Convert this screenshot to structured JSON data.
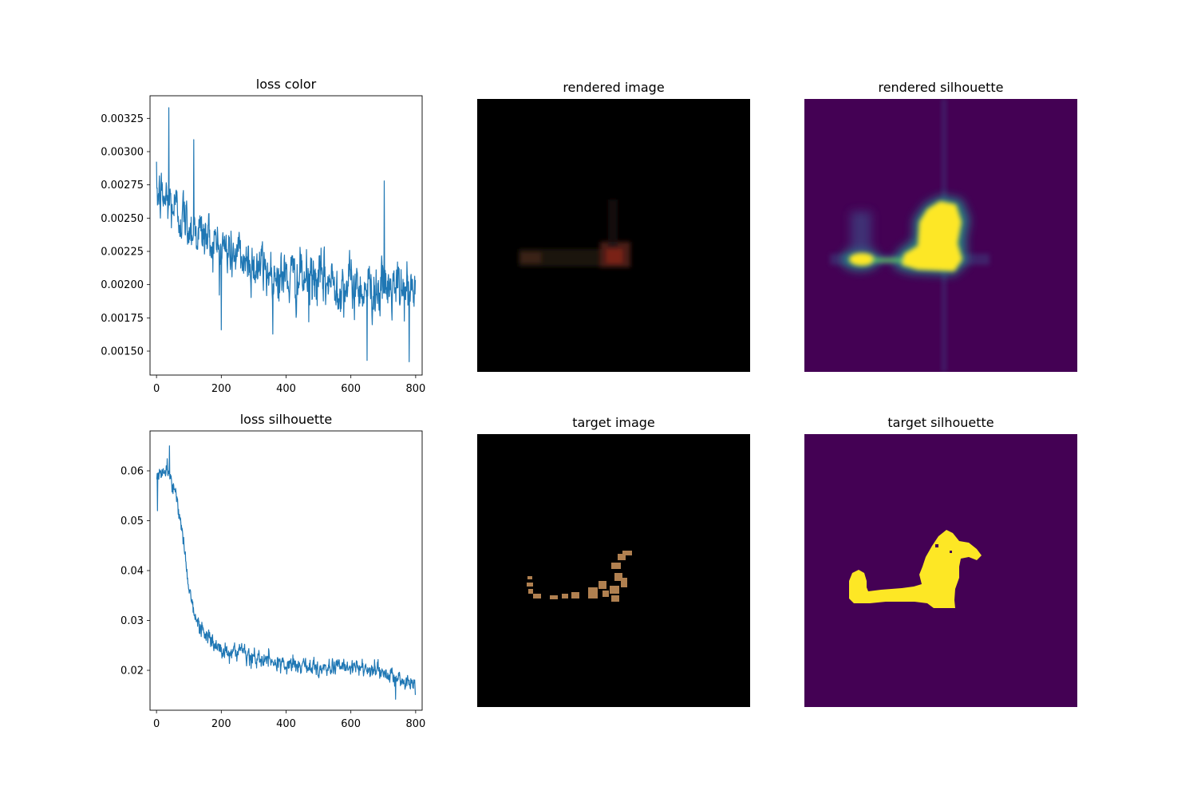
{
  "chart_data": [
    {
      "type": "line",
      "title": "loss color",
      "xlabel": "",
      "ylabel": "",
      "xlim": [
        -20,
        820
      ],
      "ylim": [
        0.00132,
        0.00342
      ],
      "x_ticks": [
        0,
        200,
        400,
        600,
        800
      ],
      "x_tick_labels": [
        "0",
        "200",
        "400",
        "600",
        "800"
      ],
      "y_ticks": [
        0.0015,
        0.00175,
        0.002,
        0.00225,
        0.0025,
        0.00275,
        0.003,
        0.00325
      ],
      "y_tick_labels": [
        "0.00150",
        "0.00175",
        "0.00200",
        "0.00225",
        "0.00250",
        "0.00275",
        "0.00300",
        "0.00325"
      ],
      "grid": false,
      "color": "#1f77b4",
      "series": [
        {
          "x_range": [
            0,
            799
          ],
          "points": 800,
          "trend": [
            [
              0,
              0.00268
            ],
            [
              40,
              0.00262
            ],
            [
              100,
              0.00245
            ],
            [
              200,
              0.00228
            ],
            [
              300,
              0.00215
            ],
            [
              400,
              0.00205
            ],
            [
              500,
              0.00203
            ],
            [
              600,
              0.00199
            ],
            [
              700,
              0.00197
            ],
            [
              799,
              0.00194
            ]
          ],
          "noise_std": 0.00016,
          "extremes": [
            [
              38,
              0.00333
            ],
            [
              115,
              0.00309
            ],
            [
              200,
              0.00166
            ],
            [
              470,
              0.00172
            ],
            [
              650,
              0.00143
            ],
            [
              703,
              0.00278
            ],
            [
              780,
              0.00142
            ]
          ]
        }
      ]
    },
    {
      "type": "line",
      "title": "loss silhouette",
      "xlabel": "",
      "ylabel": "",
      "xlim": [
        -20,
        820
      ],
      "ylim": [
        0.012,
        0.068
      ],
      "x_ticks": [
        0,
        200,
        400,
        600,
        800
      ],
      "x_tick_labels": [
        "0",
        "200",
        "400",
        "600",
        "800"
      ],
      "y_ticks": [
        0.02,
        0.03,
        0.04,
        0.05,
        0.06
      ],
      "y_tick_labels": [
        "0.02",
        "0.03",
        "0.04",
        "0.05",
        "0.06"
      ],
      "grid": false,
      "color": "#1f77b4",
      "series": [
        {
          "x_range": [
            0,
            799
          ],
          "points": 800,
          "trend": [
            [
              0,
              0.0595
            ],
            [
              40,
              0.0595
            ],
            [
              60,
              0.0555
            ],
            [
              80,
              0.047
            ],
            [
              100,
              0.037
            ],
            [
              120,
              0.03
            ],
            [
              160,
              0.0265
            ],
            [
              200,
              0.024
            ],
            [
              300,
              0.0225
            ],
            [
              400,
              0.021
            ],
            [
              500,
              0.0205
            ],
            [
              600,
              0.0205
            ],
            [
              700,
              0.0195
            ],
            [
              799,
              0.017
            ]
          ],
          "noise_std": 0.00135,
          "extremes": [
            [
              40,
              0.065
            ],
            [
              3,
              0.052
            ],
            [
              738,
              0.0142
            ]
          ]
        }
      ]
    }
  ],
  "images": {
    "rendered_image": {
      "title": "rendered image",
      "background": "#000000"
    },
    "rendered_silhouette": {
      "title": "rendered silhouette",
      "background": "#440154",
      "fill": "#fde725",
      "edge": "#21908d"
    },
    "target_image": {
      "title": "target image",
      "background": "#000000",
      "fill": "#b08050"
    },
    "target_silhouette": {
      "title": "target silhouette",
      "background": "#440154",
      "fill": "#fde725"
    }
  }
}
